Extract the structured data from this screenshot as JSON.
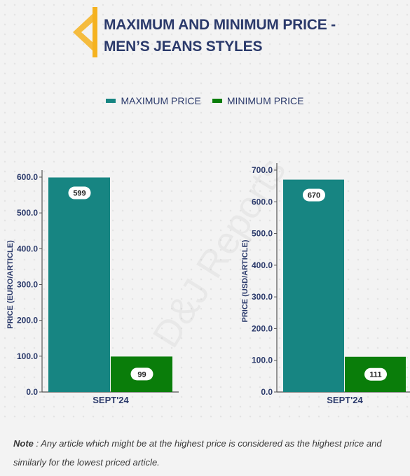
{
  "header": {
    "title_line1": "MAXIMUM AND MINIMUM PRICE -",
    "title_line2": "MEN’S JEANS STYLES"
  },
  "colors": {
    "title": "#2b3a6b",
    "accent": "#f5b21f",
    "max": "#178582",
    "min": "#0a7d0a",
    "axis_text": "#2b3a6b"
  },
  "legend": {
    "max_label": "MAXIMUM PRICE",
    "min_label": "MINIMUM PRICE"
  },
  "watermark": "D&J Reports",
  "note": {
    "label": "Note",
    "text": " : Any article which might be at the highest price is considered as the highest price and similarly for the lowest priced article."
  },
  "chart_data": [
    {
      "type": "bar",
      "categories": [
        "SEPT'24"
      ],
      "series": [
        {
          "name": "MAXIMUM PRICE",
          "values": [
            599
          ]
        },
        {
          "name": "MINIMUM PRICE",
          "values": [
            99
          ]
        }
      ],
      "ylabel": "PRICE (EURO/ARTICLE)",
      "ylim": [
        0,
        600
      ],
      "yticks": [
        "0.0",
        "100.0",
        "200.0",
        "300.0",
        "400.0",
        "500.0",
        "600.0"
      ],
      "data_labels": [
        "599",
        "99"
      ]
    },
    {
      "type": "bar",
      "categories": [
        "SEPT'24"
      ],
      "series": [
        {
          "name": "MAXIMUM PRICE",
          "values": [
            670
          ]
        },
        {
          "name": "MINIMUM PRICE",
          "values": [
            111
          ]
        }
      ],
      "ylabel": "PRICE (USD/ARTICLE)",
      "ylim": [
        0,
        700
      ],
      "yticks": [
        "0.0",
        "100.0",
        "200.0",
        "300.0",
        "400.0",
        "500.0",
        "600.0",
        "700.0"
      ],
      "data_labels": [
        "670",
        "111"
      ]
    }
  ]
}
